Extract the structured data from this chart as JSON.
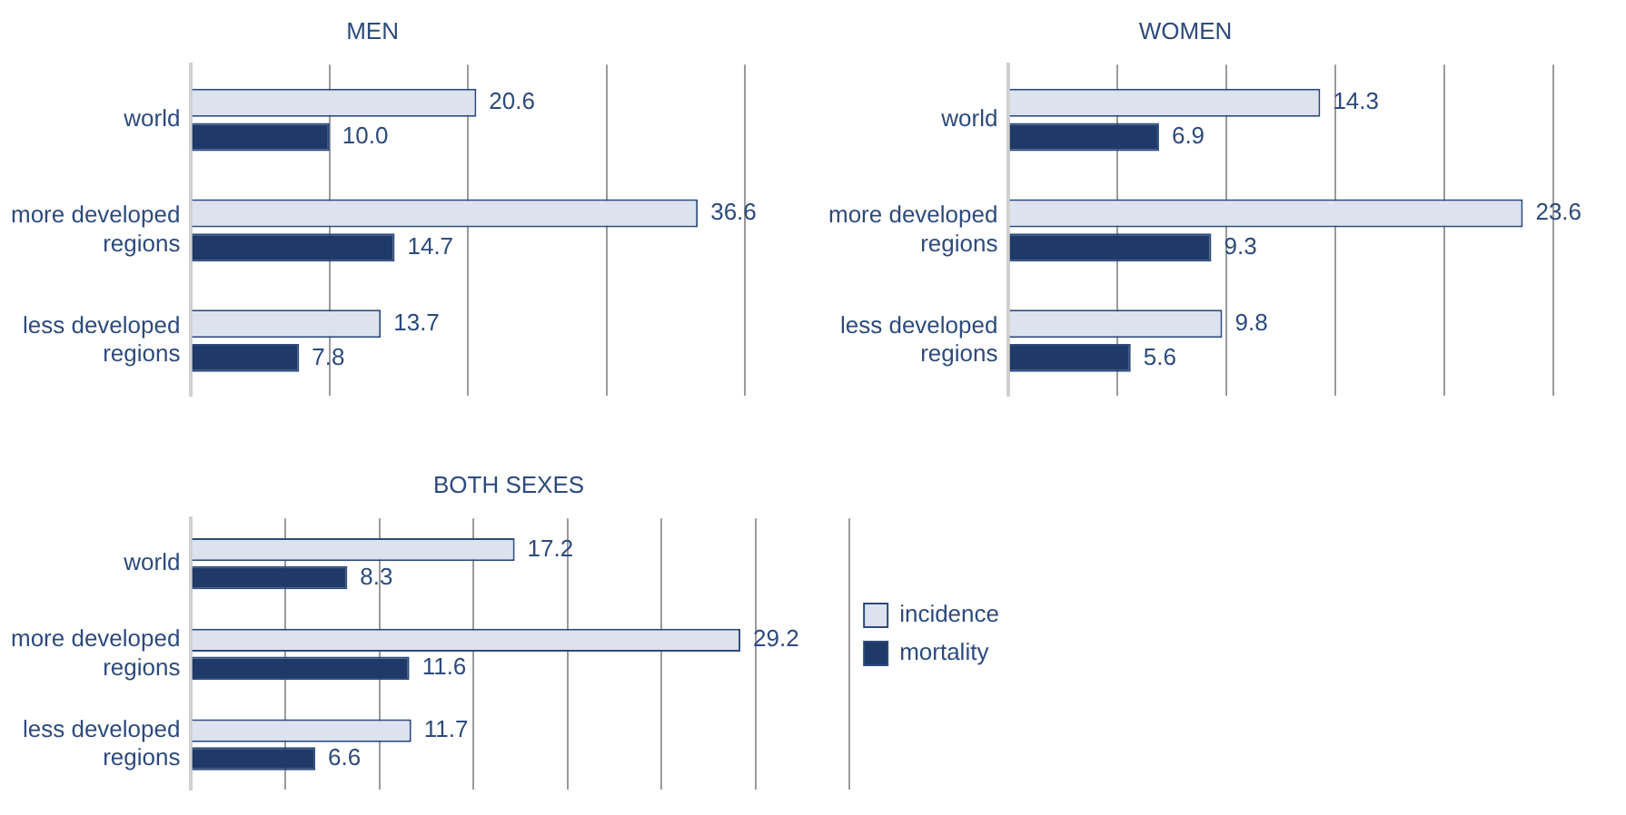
{
  "chart_data": [
    {
      "type": "bar",
      "orientation": "horizontal",
      "title": "MEN",
      "categories": [
        "world",
        "more developed regions",
        "less developed regions"
      ],
      "series": [
        {
          "color": "#dce3ee",
          "values": [
            20.6,
            36.6,
            13.7
          ],
          "value_labels": [
            "20.6",
            "36.6",
            "13.7"
          ]
        },
        {
          "color": "#1f3a68",
          "values": [
            10.0,
            14.7,
            7.8
          ],
          "value_labels": [
            "10.0",
            "14.7",
            "7.8"
          ]
        }
      ],
      "xlim": [
        0,
        40
      ],
      "xticks": [
        {
          "value": 0,
          "label": null
        },
        {
          "value": 10,
          "label": null
        },
        {
          "value": 20,
          "label": null
        },
        {
          "value": 30,
          "label": null
        },
        {
          "value": 40,
          "label": null
        }
      ],
      "tick_labels": "y",
      "grid": "x",
      "legend": false
    },
    {
      "type": "bar",
      "orientation": "horizontal",
      "title": "WOMEN",
      "categories": [
        "world",
        "more developed regions",
        "less developed regions"
      ],
      "series": [
        {
          "color": "#dce3ee",
          "values": [
            14.3,
            23.6,
            9.8
          ],
          "value_labels": [
            "14.3",
            "23.6",
            "9.8"
          ]
        },
        {
          "color": "#1f3a68",
          "values": [
            6.9,
            9.3,
            5.6
          ],
          "value_labels": [
            "6.9",
            "9.3",
            "5.6"
          ]
        }
      ],
      "xlim": [
        0,
        25
      ],
      "xticks": [
        {
          "value": 0,
          "label": null
        },
        {
          "value": 5,
          "label": null
        },
        {
          "value": 10,
          "label": null
        },
        {
          "value": 15,
          "label": null
        },
        {
          "value": 20,
          "label": null
        },
        {
          "value": 25,
          "label": null
        }
      ],
      "tick_labels": "y",
      "grid": "x",
      "legend": false
    },
    {
      "type": "bar",
      "orientation": "horizontal",
      "title": "BOTH SEXES",
      "categories": [
        "world",
        "more developed regions",
        "less developed regions"
      ],
      "series": [
        {
          "name": "incidence",
          "color": "#dce3ee",
          "values": [
            17.2,
            29.2,
            11.7
          ],
          "value_labels": [
            "17.2",
            "29.2",
            "11.7"
          ]
        },
        {
          "name": "mortality",
          "color": "#1f3a68",
          "values": [
            8.3,
            11.6,
            6.6
          ],
          "value_labels": [
            "8.3",
            "11.6",
            "6.6"
          ]
        }
      ],
      "xlim": [
        0,
        35
      ],
      "xticks": [
        {
          "value": 0,
          "label": null
        },
        {
          "value": 5,
          "label": null
        },
        {
          "value": 10,
          "label": null
        },
        {
          "value": 15,
          "label": null
        },
        {
          "value": 20,
          "label": null
        },
        {
          "value": 25,
          "label": null
        },
        {
          "value": 30,
          "label": null
        },
        {
          "value": 35,
          "label": null
        }
      ],
      "tick_labels": "y",
      "grid": "x",
      "legend": "right"
    }
  ]
}
